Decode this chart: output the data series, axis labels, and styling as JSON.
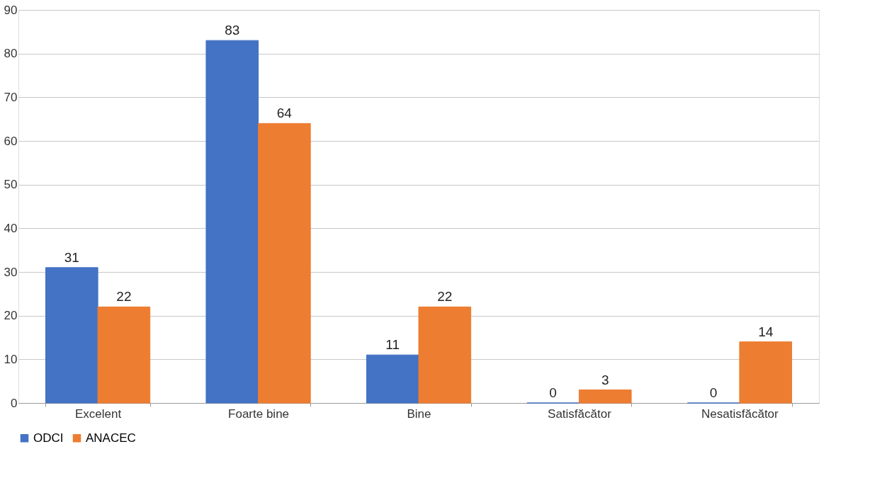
{
  "chart_data": {
    "type": "bar",
    "categories": [
      "Excelent",
      "Foarte bine",
      "Bine",
      "Satisfăcător",
      "Nesatisfăcător"
    ],
    "series": [
      {
        "name": "ODCI",
        "color": "#4472c4",
        "values": [
          31,
          83,
          11,
          0,
          0
        ]
      },
      {
        "name": "ANACEC",
        "color": "#ed7d31",
        "values": [
          22,
          64,
          22,
          3,
          14
        ]
      }
    ],
    "ylim": [
      0,
      90
    ],
    "yticks": [
      0,
      10,
      20,
      30,
      40,
      50,
      60,
      70,
      80,
      90
    ],
    "grid": "y",
    "legend": "bottom",
    "data_labels": true
  }
}
